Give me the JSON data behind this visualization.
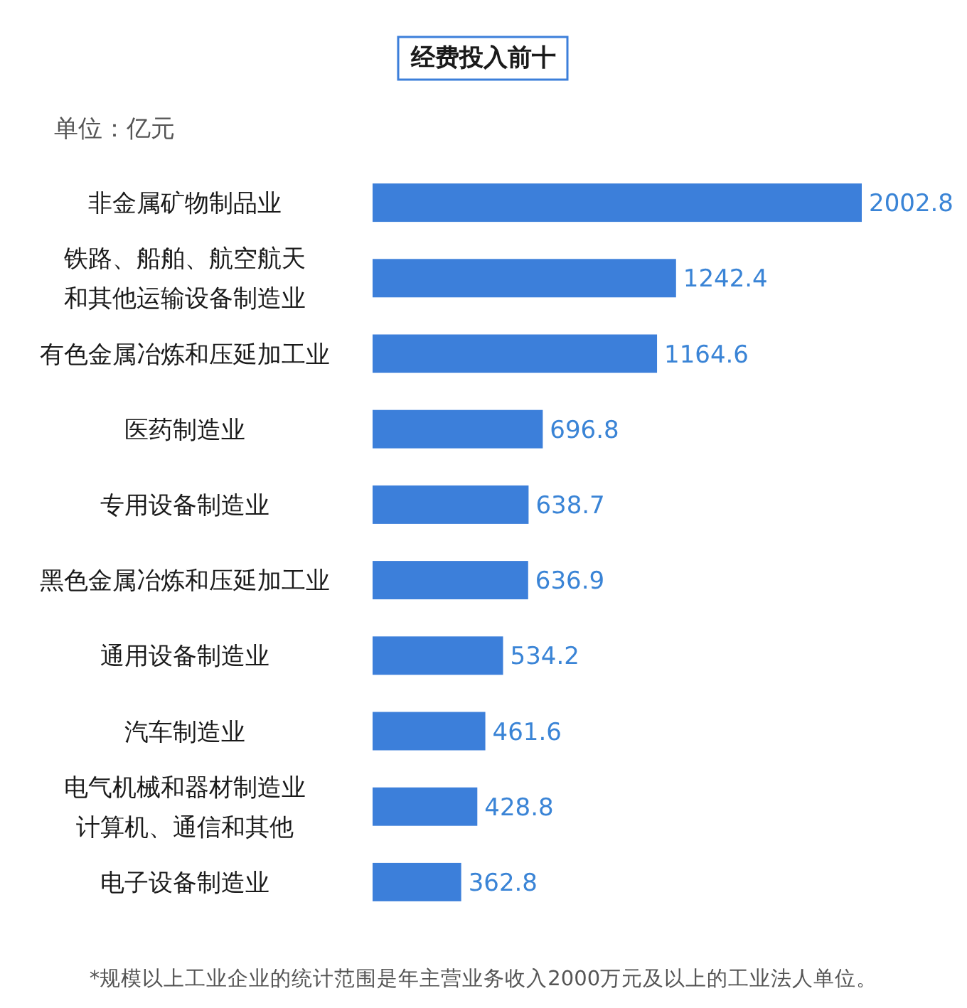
{
  "chart_data": {
    "type": "bar",
    "orientation": "horizontal",
    "title": "经费投入前十",
    "subtitle": "单位：亿元",
    "categories": [
      "非金属矿物制品业",
      "铁路、船舶、航空航天和其他运输设备制造业",
      "有色金属冶炼和压延加工业",
      "医药制造业",
      "专用设备制造业",
      "黑色金属冶炼和压延加工业",
      "通用设备制造业",
      "汽车制造业",
      "电气机械和器材制造业计算机、通信和其他",
      "电子设备制造业"
    ],
    "values": [
      2002.8,
      1242.4,
      1164.6,
      696.8,
      638.7,
      636.9,
      534.2,
      461.6,
      428.8,
      362.8
    ],
    "color": "#3c7fda",
    "data_labels": true,
    "annotations": [
      "*规模以上工业企业的统计范围是年主营业务收入2000万元及以上的工业法人单位。"
    ]
  }
}
